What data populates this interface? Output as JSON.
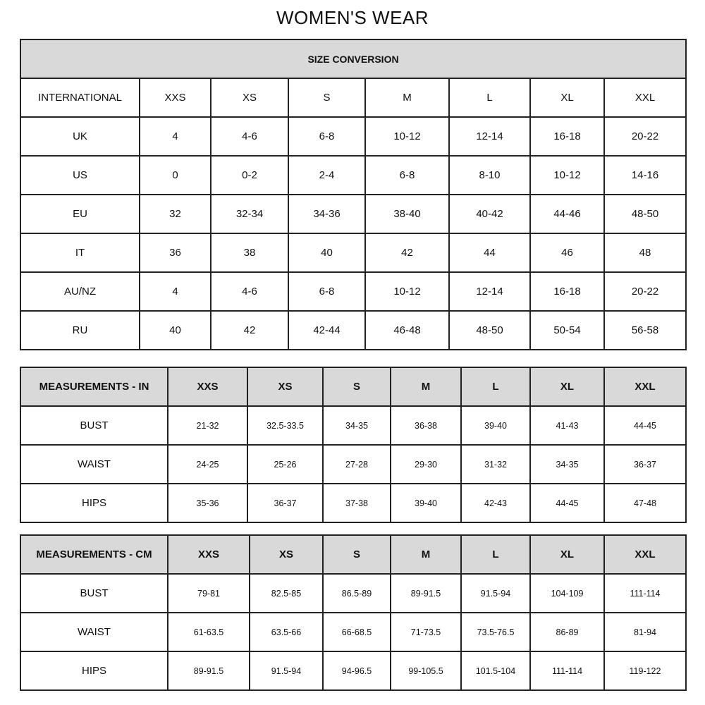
{
  "title": "WOMEN'S WEAR",
  "conversion": {
    "heading": "SIZE CONVERSION",
    "columns": [
      "INTERNATIONAL",
      "XXS",
      "XS",
      "S",
      "M",
      "L",
      "XL",
      "XXL"
    ],
    "rows": [
      [
        "UK",
        "4",
        "4-6",
        "6-8",
        "10-12",
        "12-14",
        "16-18",
        "20-22"
      ],
      [
        "US",
        "0",
        "0-2",
        "2-4",
        "6-8",
        "8-10",
        "10-12",
        "14-16"
      ],
      [
        "EU",
        "32",
        "32-34",
        "34-36",
        "38-40",
        "40-42",
        "44-46",
        "48-50"
      ],
      [
        "IT",
        "36",
        "38",
        "40",
        "42",
        "44",
        "46",
        "48"
      ],
      [
        "AU/NZ",
        "4",
        "4-6",
        "6-8",
        "10-12",
        "12-14",
        "16-18",
        "20-22"
      ],
      [
        "RU",
        "40",
        "42",
        "42-44",
        "46-48",
        "48-50",
        "50-54",
        "56-58"
      ]
    ]
  },
  "inches": {
    "columns": [
      "MEASUREMENTS - IN",
      "XXS",
      "XS",
      "S",
      "M",
      "L",
      "XL",
      "XXL"
    ],
    "rows": [
      [
        "BUST",
        "21-32",
        "32.5-33.5",
        "34-35",
        "36-38",
        "39-40",
        "41-43",
        "44-45"
      ],
      [
        "WAIST",
        "24-25",
        "25-26",
        "27-28",
        "29-30",
        "31-32",
        "34-35",
        "36-37"
      ],
      [
        "HIPS",
        "35-36",
        "36-37",
        "37-38",
        "39-40",
        "42-43",
        "44-45",
        "47-48"
      ]
    ]
  },
  "cm": {
    "columns": [
      "MEASUREMENTS - CM",
      "XXS",
      "XS",
      "S",
      "M",
      "L",
      "XL",
      "XXL"
    ],
    "rows": [
      [
        "BUST",
        "79-81",
        "82.5-85",
        "86.5-89",
        "89-91.5",
        "91.5-94",
        "104-109",
        "111-114"
      ],
      [
        "WAIST",
        "61-63.5",
        "63.5-66",
        "66-68.5",
        "71-73.5",
        "73.5-76.5",
        "86-89",
        "81-94"
      ],
      [
        "HIPS",
        "89-91.5",
        "91.5-94",
        "94-96.5",
        "99-105.5",
        "101.5-104",
        "111-114",
        "119-122"
      ]
    ]
  },
  "colors": {
    "header_fill": "#d9d9d9",
    "border": "#222222"
  }
}
